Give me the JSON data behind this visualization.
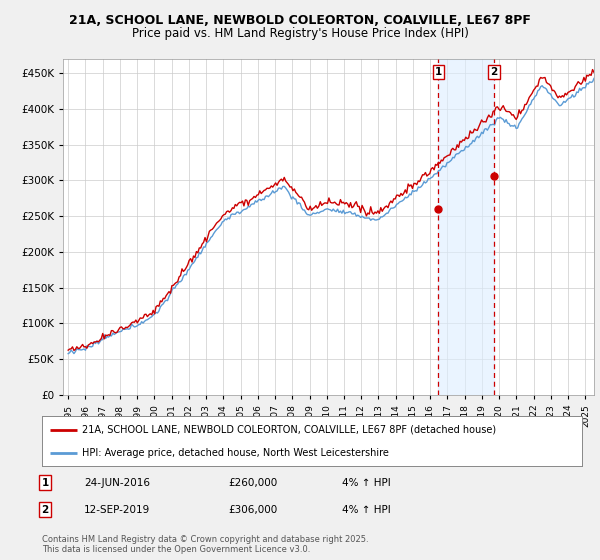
{
  "title_line1": "21A, SCHOOL LANE, NEWBOLD COLEORTON, COALVILLE, LE67 8PF",
  "title_line2": "Price paid vs. HM Land Registry's House Price Index (HPI)",
  "ytick_values": [
    0,
    50000,
    100000,
    150000,
    200000,
    250000,
    300000,
    350000,
    400000,
    450000
  ],
  "ylim": [
    0,
    470000
  ],
  "xlim_start": 1994.7,
  "xlim_end": 2025.5,
  "hpi_color": "#5b9bd5",
  "hpi_fill_color": "#ddeeff",
  "price_color": "#cc0000",
  "marker1_x": 2016.48,
  "marker1_y": 260000,
  "marker2_x": 2019.71,
  "marker2_y": 306000,
  "vline_color": "#cc0000",
  "shade_color": "#ddeeff",
  "legend_label1": "21A, SCHOOL LANE, NEWBOLD COLEORTON, COALVILLE, LE67 8PF (detached house)",
  "legend_label2": "HPI: Average price, detached house, North West Leicestershire",
  "table_row1": [
    "1",
    "24-JUN-2016",
    "£260,000",
    "4% ↑ HPI"
  ],
  "table_row2": [
    "2",
    "12-SEP-2019",
    "£306,000",
    "4% ↑ HPI"
  ],
  "footer": "Contains HM Land Registry data © Crown copyright and database right 2025.\nThis data is licensed under the Open Government Licence v3.0.",
  "background_color": "#f0f0f0",
  "plot_bg_color": "#ffffff",
  "grid_color": "#cccccc"
}
